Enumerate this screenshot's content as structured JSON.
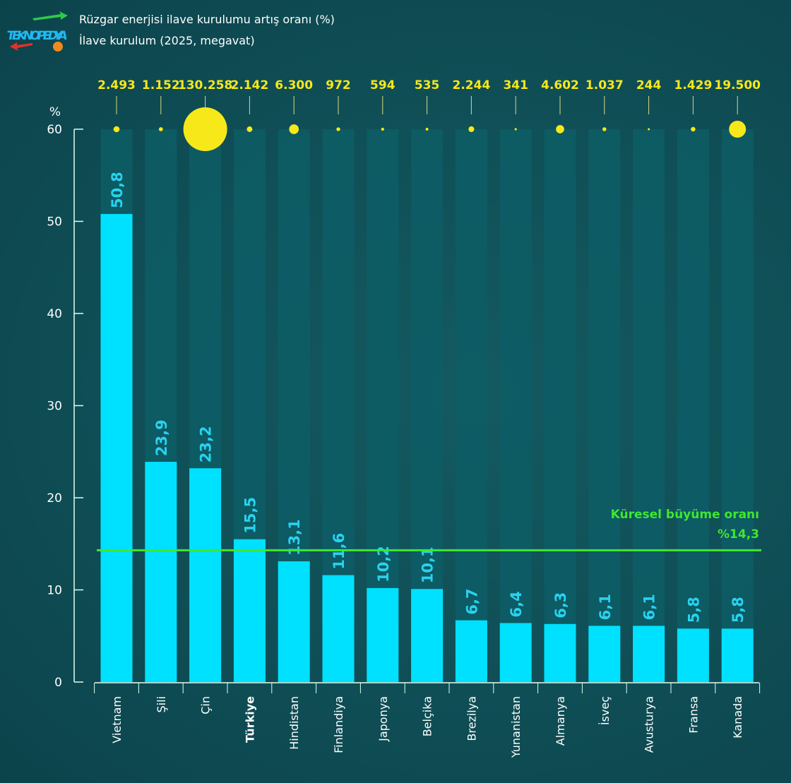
{
  "header": {
    "logo": "TEKNOPEDYA",
    "title": "Rüzgar enerjisi ilave kurulumu artış oranı (%)",
    "subtitle": "İlave kurulum (2025, megavat)"
  },
  "chart_data": {
    "type": "bar",
    "categories": [
      "Vietnam",
      "Şili",
      "Çin",
      "Türkiye",
      "Hindistan",
      "Finlandiya",
      "Japonya",
      "Belçika",
      "Brezilya",
      "Yunanistan",
      "Almanya",
      "İsveç",
      "Avusturya",
      "Fransa",
      "Kanada"
    ],
    "highlight_category": "Türkiye",
    "values": [
      50.8,
      23.9,
      23.2,
      15.5,
      13.1,
      11.6,
      10.2,
      10.1,
      6.7,
      6.4,
      6.3,
      6.1,
      6.1,
      5.8,
      5.8
    ],
    "value_labels": [
      "50,8",
      "23,9",
      "23,2",
      "15,5",
      "13,1",
      "11,6",
      "10,2",
      "10,1",
      "6,7",
      "6,4",
      "6,3",
      "6,1",
      "6,1",
      "5,8",
      "5,8"
    ],
    "bubble_series": {
      "values": [
        2493,
        1152,
        130258,
        2142,
        6300,
        972,
        594,
        535,
        2244,
        341,
        4602,
        1037,
        244,
        1429,
        19500
      ],
      "labels": [
        "2.493",
        "1.152",
        "130.258",
        "2.142",
        "6.300",
        "972",
        "594",
        "535",
        "2.244",
        "341",
        "4.602",
        "1.037",
        "244",
        "1.429",
        "19.500"
      ]
    },
    "ylabel": "%",
    "ylim": [
      0,
      60
    ],
    "yticks": [
      0,
      10,
      20,
      30,
      40,
      50,
      60
    ],
    "reference_line": {
      "value": 14.3,
      "label": "Küresel büyüme oranı",
      "value_label": "%14,3"
    },
    "colors": {
      "bar": "#00e1ff",
      "bar_label": "#27d3f0",
      "bubble": "#f7e819",
      "reference": "#3de82f",
      "column_bg": "#0d5e67"
    }
  }
}
